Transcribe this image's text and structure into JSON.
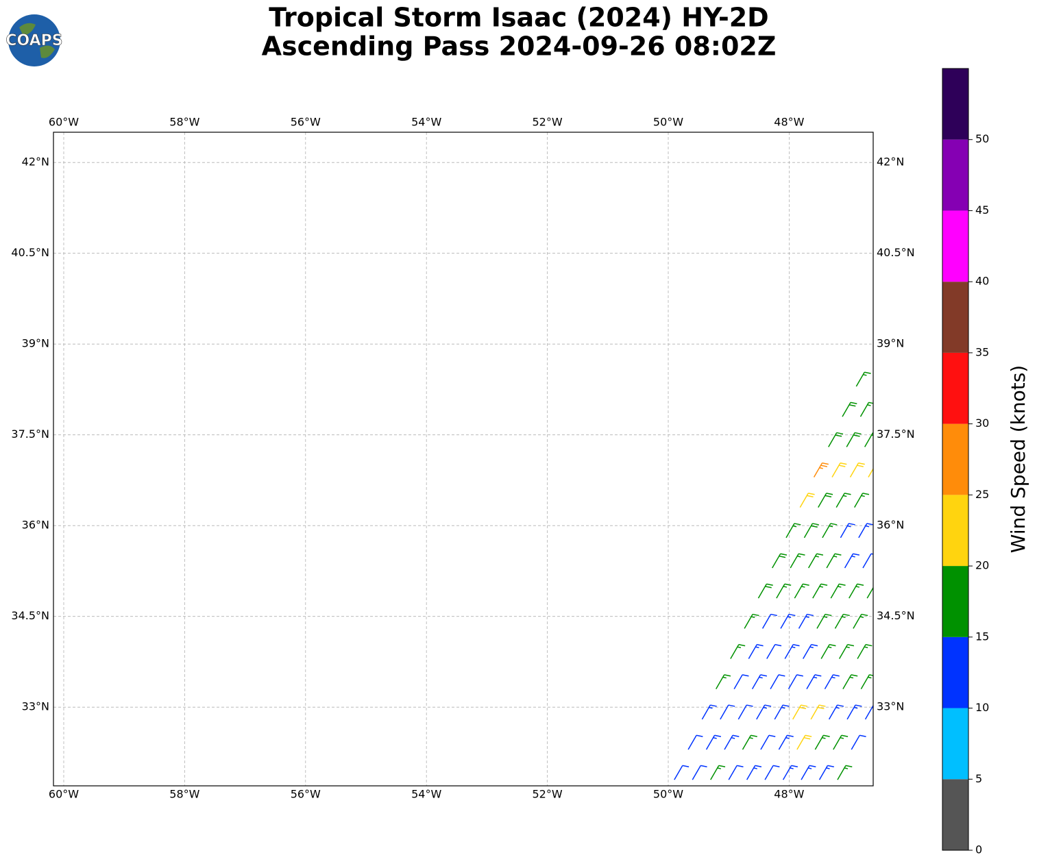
{
  "chart_data": {
    "type": "barbs",
    "title": [
      "Tropical Storm Isaac (2024) HY-2D",
      "Ascending Pass 2024-09-26 08:02Z"
    ],
    "logo": "COAPS",
    "xlim": [
      -60.17,
      -46.61
    ],
    "ylim": [
      31.7,
      42.5
    ],
    "xticks": [
      {
        "value": -60,
        "label": "60°W"
      },
      {
        "value": -58,
        "label": "58°W"
      },
      {
        "value": -56,
        "label": "56°W"
      },
      {
        "value": -54,
        "label": "54°W"
      },
      {
        "value": -52,
        "label": "52°W"
      },
      {
        "value": -50,
        "label": "50°W"
      },
      {
        "value": -48,
        "label": "48°W"
      }
    ],
    "yticks": [
      {
        "value": 33,
        "label": "33°N"
      },
      {
        "value": 34.5,
        "label": "34.5°N"
      },
      {
        "value": 36,
        "label": "36°N"
      },
      {
        "value": 37.5,
        "label": "37.5°N"
      },
      {
        "value": 39,
        "label": "39°N"
      },
      {
        "value": 40.5,
        "label": "40.5°N"
      },
      {
        "value": 42,
        "label": "42°N"
      }
    ],
    "grid": true,
    "barbs": [
      {
        "lon": -49.9,
        "lat": 31.8,
        "speed": 12,
        "direction": 30
      },
      {
        "lon": -49.67,
        "lat": 32.3,
        "speed": 12,
        "direction": 30
      },
      {
        "lon": -49.44,
        "lat": 32.8,
        "speed": 13,
        "direction": 30
      },
      {
        "lon": -49.21,
        "lat": 33.3,
        "speed": 17,
        "direction": 30
      },
      {
        "lon": -48.97,
        "lat": 33.8,
        "speed": 17,
        "direction": 30
      },
      {
        "lon": -48.74,
        "lat": 34.3,
        "speed": 17,
        "direction": 30
      },
      {
        "lon": -48.51,
        "lat": 34.8,
        "speed": 18,
        "direction": 30
      },
      {
        "lon": -48.28,
        "lat": 35.3,
        "speed": 18,
        "direction": 30
      },
      {
        "lon": -48.05,
        "lat": 35.8,
        "speed": 17,
        "direction": 30
      },
      {
        "lon": -47.82,
        "lat": 36.3,
        "speed": 22,
        "direction": 30
      },
      {
        "lon": -47.59,
        "lat": 36.8,
        "speed": 27,
        "direction": 30
      },
      {
        "lon": -47.35,
        "lat": 37.3,
        "speed": 18,
        "direction": 30
      },
      {
        "lon": -47.12,
        "lat": 37.8,
        "speed": 18,
        "direction": 30
      },
      {
        "lon": -46.89,
        "lat": 38.3,
        "speed": 17,
        "direction": 30
      },
      {
        "lon": -49.6,
        "lat": 31.8,
        "speed": 12,
        "direction": 30
      },
      {
        "lon": -49.37,
        "lat": 32.3,
        "speed": 13,
        "direction": 30
      },
      {
        "lon": -49.14,
        "lat": 32.8,
        "speed": 12,
        "direction": 30
      },
      {
        "lon": -48.91,
        "lat": 33.3,
        "speed": 12,
        "direction": 30
      },
      {
        "lon": -48.67,
        "lat": 33.8,
        "speed": 13,
        "direction": 30
      },
      {
        "lon": -48.44,
        "lat": 34.3,
        "speed": 12,
        "direction": 30
      },
      {
        "lon": -48.21,
        "lat": 34.8,
        "speed": 17,
        "direction": 30
      },
      {
        "lon": -47.98,
        "lat": 35.3,
        "speed": 17,
        "direction": 30
      },
      {
        "lon": -47.75,
        "lat": 35.8,
        "speed": 18,
        "direction": 30
      },
      {
        "lon": -47.52,
        "lat": 36.3,
        "speed": 18,
        "direction": 30
      },
      {
        "lon": -47.29,
        "lat": 36.8,
        "speed": 22,
        "direction": 30
      },
      {
        "lon": -47.05,
        "lat": 37.3,
        "speed": 18,
        "direction": 30
      },
      {
        "lon": -46.82,
        "lat": 37.8,
        "speed": 17,
        "direction": 30
      },
      {
        "lon": -49.3,
        "lat": 31.8,
        "speed": 17,
        "direction": 30
      },
      {
        "lon": -49.07,
        "lat": 32.3,
        "speed": 13,
        "direction": 30
      },
      {
        "lon": -48.84,
        "lat": 32.8,
        "speed": 12,
        "direction": 30
      },
      {
        "lon": -48.61,
        "lat": 33.3,
        "speed": 13,
        "direction": 30
      },
      {
        "lon": -48.37,
        "lat": 33.8,
        "speed": 12,
        "direction": 30
      },
      {
        "lon": -48.14,
        "lat": 34.3,
        "speed": 13,
        "direction": 30
      },
      {
        "lon": -47.91,
        "lat": 34.8,
        "speed": 17,
        "direction": 30
      },
      {
        "lon": -47.68,
        "lat": 35.3,
        "speed": 17,
        "direction": 30
      },
      {
        "lon": -47.45,
        "lat": 35.8,
        "speed": 16,
        "direction": 30
      },
      {
        "lon": -47.22,
        "lat": 36.3,
        "speed": 17,
        "direction": 30
      },
      {
        "lon": -46.99,
        "lat": 36.8,
        "speed": 22,
        "direction": 30
      },
      {
        "lon": -46.75,
        "lat": 37.3,
        "speed": 18,
        "direction": 30
      },
      {
        "lon": -49.0,
        "lat": 31.8,
        "speed": 12,
        "direction": 30
      },
      {
        "lon": -48.77,
        "lat": 32.3,
        "speed": 17,
        "direction": 30
      },
      {
        "lon": -48.54,
        "lat": 32.8,
        "speed": 13,
        "direction": 30
      },
      {
        "lon": -48.31,
        "lat": 33.3,
        "speed": 12,
        "direction": 30
      },
      {
        "lon": -48.07,
        "lat": 33.8,
        "speed": 13,
        "direction": 30
      },
      {
        "lon": -47.84,
        "lat": 34.3,
        "speed": 13,
        "direction": 30
      },
      {
        "lon": -47.61,
        "lat": 34.8,
        "speed": 17,
        "direction": 30
      },
      {
        "lon": -47.38,
        "lat": 35.3,
        "speed": 16,
        "direction": 30
      },
      {
        "lon": -47.15,
        "lat": 35.8,
        "speed": 13,
        "direction": 30
      },
      {
        "lon": -46.92,
        "lat": 36.3,
        "speed": 17,
        "direction": 30
      },
      {
        "lon": -46.69,
        "lat": 36.8,
        "speed": 22,
        "direction": 30
      },
      {
        "lon": -48.7,
        "lat": 31.8,
        "speed": 13,
        "direction": 30
      },
      {
        "lon": -48.47,
        "lat": 32.3,
        "speed": 12,
        "direction": 30
      },
      {
        "lon": -48.24,
        "lat": 32.8,
        "speed": 13,
        "direction": 30
      },
      {
        "lon": -48.01,
        "lat": 33.3,
        "speed": 12,
        "direction": 30
      },
      {
        "lon": -47.77,
        "lat": 33.8,
        "speed": 13,
        "direction": 30
      },
      {
        "lon": -47.54,
        "lat": 34.3,
        "speed": 17,
        "direction": 30
      },
      {
        "lon": -47.31,
        "lat": 34.8,
        "speed": 17,
        "direction": 30
      },
      {
        "lon": -47.08,
        "lat": 35.3,
        "speed": 13,
        "direction": 30
      },
      {
        "lon": -46.85,
        "lat": 35.8,
        "speed": 13,
        "direction": 30
      },
      {
        "lon": -48.4,
        "lat": 31.8,
        "speed": 12,
        "direction": 30
      },
      {
        "lon": -48.17,
        "lat": 32.3,
        "speed": 13,
        "direction": 30
      },
      {
        "lon": -47.94,
        "lat": 32.8,
        "speed": 22,
        "direction": 30
      },
      {
        "lon": -47.71,
        "lat": 33.3,
        "speed": 13,
        "direction": 30
      },
      {
        "lon": -47.47,
        "lat": 33.8,
        "speed": 17,
        "direction": 30
      },
      {
        "lon": -47.24,
        "lat": 34.3,
        "speed": 17,
        "direction": 30
      },
      {
        "lon": -47.01,
        "lat": 34.8,
        "speed": 17,
        "direction": 30
      },
      {
        "lon": -46.78,
        "lat": 35.3,
        "speed": 12,
        "direction": 30
      },
      {
        "lon": -48.1,
        "lat": 31.8,
        "speed": 13,
        "direction": 30
      },
      {
        "lon": -47.87,
        "lat": 32.3,
        "speed": 22,
        "direction": 30
      },
      {
        "lon": -47.64,
        "lat": 32.8,
        "speed": 22,
        "direction": 30
      },
      {
        "lon": -47.41,
        "lat": 33.3,
        "speed": 13,
        "direction": 30
      },
      {
        "lon": -47.17,
        "lat": 33.8,
        "speed": 17,
        "direction": 30
      },
      {
        "lon": -46.94,
        "lat": 34.3,
        "speed": 17,
        "direction": 30
      },
      {
        "lon": -46.71,
        "lat": 34.8,
        "speed": 18,
        "direction": 30
      },
      {
        "lon": -47.8,
        "lat": 31.8,
        "speed": 13,
        "direction": 30
      },
      {
        "lon": -47.57,
        "lat": 32.3,
        "speed": 17,
        "direction": 30
      },
      {
        "lon": -47.34,
        "lat": 32.8,
        "speed": 13,
        "direction": 30
      },
      {
        "lon": -47.11,
        "lat": 33.3,
        "speed": 17,
        "direction": 30
      },
      {
        "lon": -46.87,
        "lat": 33.8,
        "speed": 17,
        "direction": 30
      },
      {
        "lon": -47.5,
        "lat": 31.8,
        "speed": 13,
        "direction": 30
      },
      {
        "lon": -47.27,
        "lat": 32.3,
        "speed": 17,
        "direction": 30
      },
      {
        "lon": -47.04,
        "lat": 32.8,
        "speed": 13,
        "direction": 30
      },
      {
        "lon": -46.81,
        "lat": 33.3,
        "speed": 17,
        "direction": 30
      },
      {
        "lon": -47.2,
        "lat": 31.8,
        "speed": 17,
        "direction": 30
      },
      {
        "lon": -46.97,
        "lat": 32.3,
        "speed": 12,
        "direction": 30
      },
      {
        "lon": -46.74,
        "lat": 32.8,
        "speed": 13,
        "direction": 30
      }
    ],
    "colorbar": {
      "label": "Wind Speed (knots)",
      "bounds": [
        0,
        5,
        10,
        15,
        20,
        25,
        30,
        35,
        40,
        45,
        50,
        55
      ],
      "colors": [
        "#555555",
        "#00bfff",
        "#0033ff",
        "#009100",
        "#ffd40f",
        "#ff8c0a",
        "#ff1010",
        "#823a28",
        "#ff00ff",
        "#8500b3",
        "#2e0059"
      ],
      "ticks": [
        0,
        5,
        10,
        15,
        20,
        25,
        30,
        35,
        40,
        45,
        50
      ]
    }
  }
}
